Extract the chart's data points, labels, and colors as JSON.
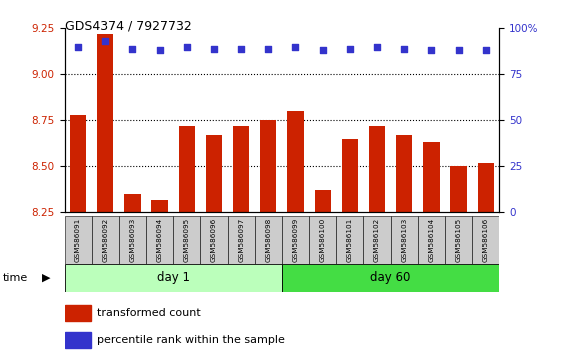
{
  "title": "GDS4374 / 7927732",
  "samples": [
    "GSM586091",
    "GSM586092",
    "GSM586093",
    "GSM586094",
    "GSM586095",
    "GSM586096",
    "GSM586097",
    "GSM586098",
    "GSM586099",
    "GSM586100",
    "GSM586101",
    "GSM586102",
    "GSM586103",
    "GSM586104",
    "GSM586105",
    "GSM586106"
  ],
  "bar_values": [
    8.78,
    9.22,
    8.35,
    8.32,
    8.72,
    8.67,
    8.72,
    8.75,
    8.8,
    8.37,
    8.65,
    8.72,
    8.67,
    8.63,
    8.5,
    8.52
  ],
  "dot_values": [
    90,
    93,
    89,
    88,
    90,
    89,
    89,
    89,
    90,
    88,
    89,
    90,
    89,
    88,
    88,
    88
  ],
  "bar_color": "#cc2200",
  "dot_color": "#3333cc",
  "ylim_left": [
    8.25,
    9.25
  ],
  "ylim_right": [
    0,
    100
  ],
  "yticks_left": [
    8.25,
    8.5,
    8.75,
    9.0,
    9.25
  ],
  "yticks_right": [
    0,
    25,
    50,
    75,
    100
  ],
  "grid_values": [
    8.5,
    8.75,
    9.0
  ],
  "day1_label": "day 1",
  "day60_label": "day 60",
  "time_label": "time",
  "legend_bar": "transformed count",
  "legend_dot": "percentile rank within the sample",
  "bg_color": "#ffffff",
  "plot_bg": "#ffffff",
  "tick_label_color_left": "#cc2200",
  "tick_label_color_right": "#3333cc",
  "day1_color": "#bbffbb",
  "day60_color": "#44dd44",
  "sample_bg": "#cccccc"
}
